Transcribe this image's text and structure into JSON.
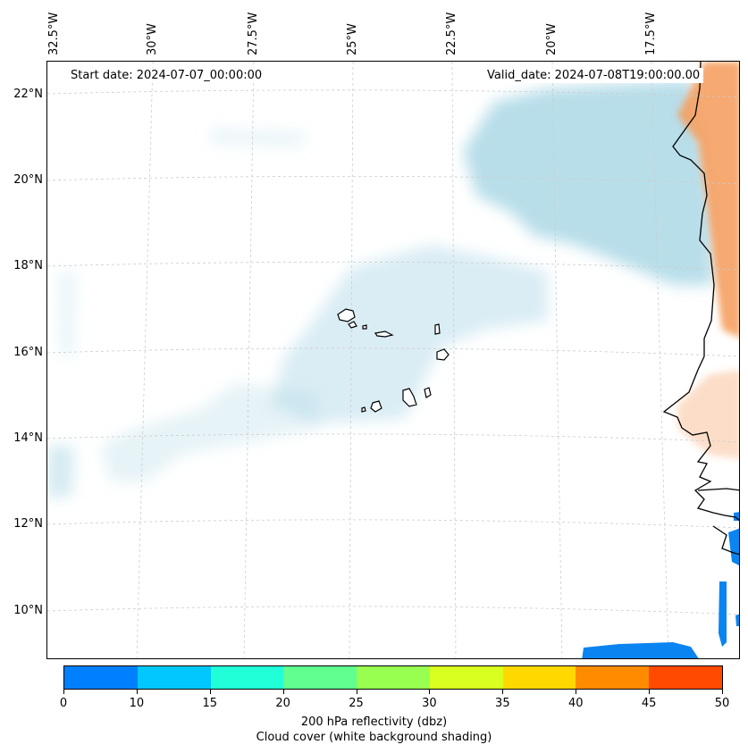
{
  "header": {
    "start_date": "Start date: 2024-07-07_00:00:00",
    "valid_date": "Valid_date: 2024-07-08T19:00:00.00"
  },
  "lon_labels": [
    "32.5°W",
    "30°W",
    "27.5°W",
    "25°W",
    "22.5°W",
    "20°W",
    "17.5°W"
  ],
  "lat_labels": [
    "22°N",
    "20°N",
    "18°N",
    "16°N",
    "14°N",
    "12°N",
    "10°N"
  ],
  "colorbar": {
    "ticks": [
      "0",
      "10",
      "15",
      "20",
      "25",
      "30",
      "35",
      "40",
      "45",
      "50"
    ],
    "colors": [
      "#0080ff",
      "#00c8ff",
      "#20ffd8",
      "#60ff90",
      "#98ff50",
      "#d8ff20",
      "#ffd800",
      "#ff8c00",
      "#ff4a00"
    ],
    "title": "200 hPa reflectivity (dbz)",
    "subtitle": "Cloud cover (white background shading)"
  },
  "colors": {
    "cloud": "#acd8e6",
    "warm": "#f5a060",
    "reflectivity": "#0a84f0",
    "grid": "#cccccc",
    "coast": "#000000"
  }
}
